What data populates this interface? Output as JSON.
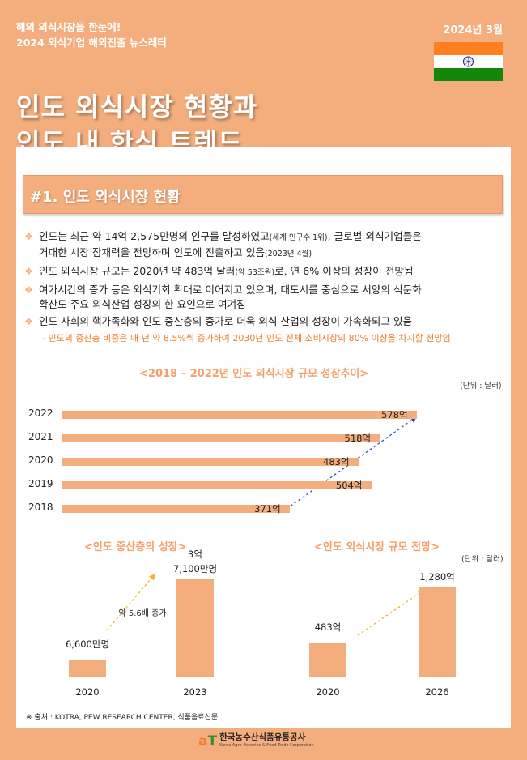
{
  "header": {
    "line1": "해외 외식시장을 한눈에!",
    "line2": "2024 외식기업 해외진출 뉴스레터",
    "date": "2024년 3월",
    "title1": "인도 외식시장 현황과",
    "title2": "인도 내 한식 트렌드",
    "flag_colors": [
      "#ff7f20",
      "#ffffff",
      "#138808"
    ]
  },
  "section": {
    "heading": "#1. 인도 외식시장 현황"
  },
  "bullets": {
    "b1_main": "인도는 최근 약 14억 2,575만명의 인구를 달성하였고",
    "b1_small": "(세계 인구수 1위)",
    "b1_tail": ", 글로벌 외식기업들은",
    "b1_line2": "거대한 시장 잠재력을 전망하며 인도에 진출하고 있음",
    "b1_small2": "(2023년 4월)",
    "b2_main": "인도 외식시장 규모는 2020년 약 483억 달러",
    "b2_small": "(약 53조원)",
    "b2_tail": "로, 연 6% 이상의 성장이 전망됨",
    "b3_line1": "여가시간의 증가 등은 외식기회 확대로 이어지고 있으며, 대도시를 중심으로 서양의 식문화",
    "b3_line2": "확산도 주요 외식산업 성장의 한 요인으로 여겨짐",
    "b4": "인도 사회의 핵가족화와 인도 중산층의 증가로 더욱 외식 산업의 성장이 가속화되고 있음",
    "b4_sub": "- 인도의 중산층 비중은 매 년 약 8.5%씩 증가하여 2030년 인도 전체 소비시장의 80% 이상을 차지할 전망임"
  },
  "chart_data": [
    {
      "type": "bar",
      "title": "<2018 – 2022년 인도 외식시장 규모 성장추이>",
      "unit": "(단위 : 달러)",
      "categories": [
        "2022",
        "2021",
        "2020",
        "2019",
        "2018"
      ],
      "values": [
        578,
        518,
        483,
        504,
        371
      ],
      "value_labels": [
        "578억",
        "518억",
        "483억",
        "504억",
        "371억"
      ],
      "orientation": "horizontal"
    },
    {
      "type": "bar",
      "title": "<인도 중산층의 성장>",
      "categories": [
        "2020",
        "2023"
      ],
      "values": [
        0.66,
        3.71
      ],
      "value_labels": [
        "6,600만명",
        "3억\n7,100만명"
      ],
      "annotation": "약 5.6배 증가"
    },
    {
      "type": "bar",
      "title": "<인도 외식시장 규모 전망>",
      "unit": "(단위 : 달러)",
      "categories": [
        "2020",
        "2026"
      ],
      "values": [
        483,
        1280
      ],
      "value_labels": [
        "483억",
        "1,280억"
      ]
    }
  ],
  "source": "※ 출처 :  KOTRA, PEW RESEARCH CENTER, 식품음료신문",
  "footer": {
    "logo_a": "a",
    "logo_t": "T",
    "org_ko": "한국농수산식품유통공사",
    "org_en": "Korea Agro-Fisheries & Food Trade Corporation"
  }
}
